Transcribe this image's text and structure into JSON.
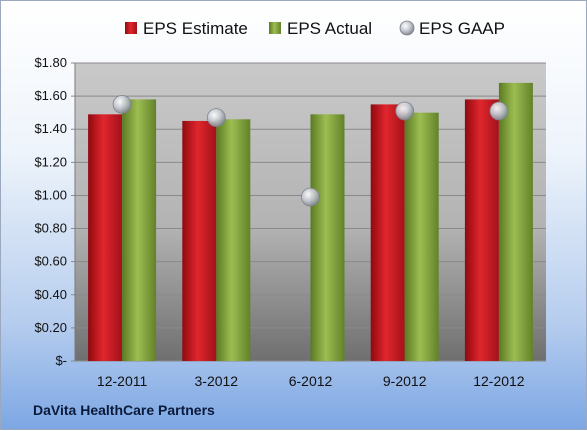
{
  "footer": {
    "company": "DaVita HealthCare Partners"
  },
  "colors": {
    "estimate": "#c8141c",
    "actual": "#7f9f3a",
    "gaap": "#b8bcc4"
  },
  "chart_data": {
    "type": "bar",
    "categories": [
      "12-2011",
      "3-2012",
      "6-2012",
      "9-2012",
      "12-2012"
    ],
    "series": [
      {
        "name": "EPS Estimate",
        "kind": "bar",
        "values": [
          1.49,
          1.45,
          null,
          1.55,
          1.58
        ]
      },
      {
        "name": "EPS Actual",
        "kind": "bar",
        "values": [
          1.58,
          1.46,
          1.49,
          1.5,
          1.68
        ]
      },
      {
        "name": "EPS GAAP",
        "kind": "scatter",
        "values": [
          1.55,
          1.47,
          0.99,
          1.51,
          1.51
        ]
      }
    ],
    "y_ticks": [
      "$-",
      "$0.20",
      "$0.40",
      "$0.60",
      "$0.80",
      "$1.00",
      "$1.20",
      "$1.40",
      "$1.60",
      "$1.80"
    ],
    "ylim": [
      0,
      1.8
    ],
    "grid": true,
    "legend_position": "top"
  }
}
